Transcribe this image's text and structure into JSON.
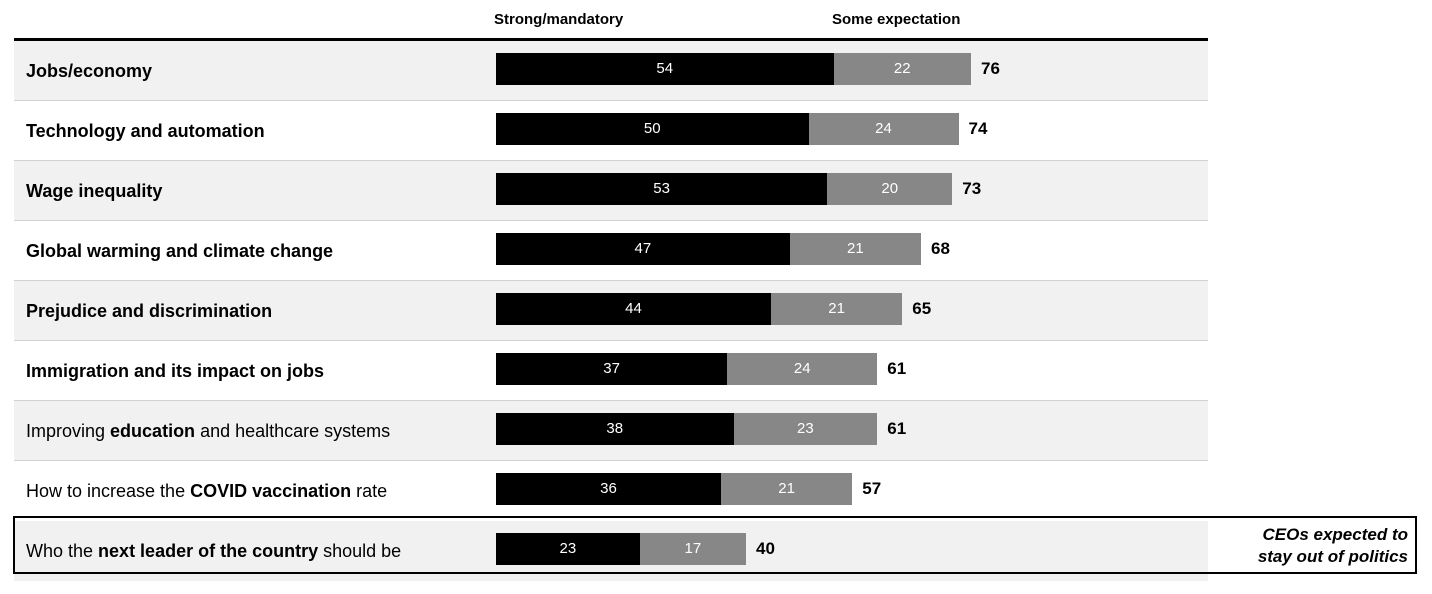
{
  "legend": {
    "strong_label": "Strong/mandatory",
    "some_label": "Some expectation"
  },
  "colors": {
    "strong": "#000000",
    "some": "#878787",
    "row_shade": "#f1f1f1"
  },
  "note": {
    "line1": "CEOs expected to",
    "line2": "stay out of politics"
  },
  "chart_data": {
    "type": "bar",
    "orientation": "horizontal",
    "stacked": true,
    "title": "",
    "xlabel": "",
    "ylabel": "",
    "xlim": [
      0,
      100
    ],
    "grid": false,
    "legend_position": "top",
    "categories": [
      "Jobs/economy",
      "Technology and automation",
      "Wage inequality",
      "Global warming and climate change",
      "Prejudice and discrimination",
      "Immigration and its impact on jobs",
      "Improving education and healthcare systems",
      "How to increase the COVID vaccination rate",
      "Who the next leader of the country should be"
    ],
    "category_parts": [
      {
        "pre": "",
        "em": "Jobs/economy",
        "post": "",
        "bold": true
      },
      {
        "pre": "",
        "em": "Technology and automation",
        "post": "",
        "bold": true
      },
      {
        "pre": "",
        "em": "Wage inequality",
        "post": "",
        "bold": true
      },
      {
        "pre": "",
        "em": "Global warming and climate change",
        "post": "",
        "bold": true
      },
      {
        "pre": "",
        "em": "Prejudice and discrimination",
        "post": "",
        "bold": true
      },
      {
        "pre": "",
        "em": "Immigration and its impact on jobs",
        "post": "",
        "bold": true
      },
      {
        "pre": "Improving ",
        "em": "education",
        "post": " and healthcare systems",
        "bold": false
      },
      {
        "pre": "How to increase the ",
        "em": "COVID vaccination",
        "post": " rate",
        "bold": false
      },
      {
        "pre": "Who the ",
        "em": "next leader of the country",
        "post": " should be",
        "bold": false
      }
    ],
    "series": [
      {
        "name": "Strong/mandatory",
        "values": [
          54,
          50,
          53,
          47,
          44,
          37,
          38,
          36,
          23
        ]
      },
      {
        "name": "Some expectation",
        "values": [
          22,
          24,
          20,
          21,
          21,
          24,
          23,
          21,
          17
        ]
      }
    ],
    "totals": [
      76,
      74,
      73,
      68,
      65,
      61,
      61,
      57,
      40
    ]
  }
}
